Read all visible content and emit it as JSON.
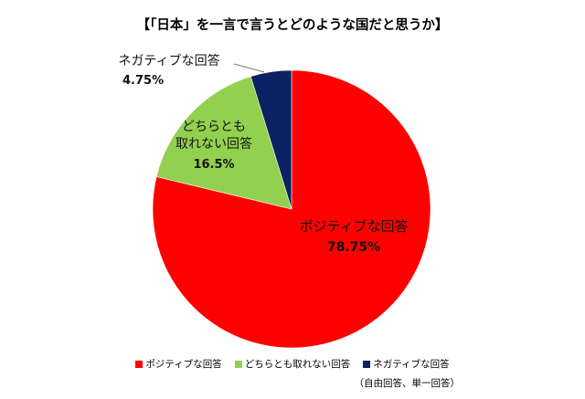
{
  "chart_data": {
    "type": "pie",
    "title": "【「日本」を一言で言うとどのような国だと思うか】",
    "start_angle": "12 o'clock, clockwise",
    "categories": [
      "ポジティブな回答",
      "どちらとも取れない回答",
      "ネガティブな回答"
    ],
    "values": [
      78.75,
      16.5,
      4.75
    ],
    "units": "%",
    "colors": [
      "#ff0000",
      "#92d050",
      "#0b2163"
    ],
    "data_labels": [
      {
        "name": "ポジティブな回答",
        "value": "78.75%"
      },
      {
        "name_line1": "どちらとも",
        "name_line2": "取れない回答",
        "value": "16.5%"
      },
      {
        "name": "ネガティブな回答",
        "value": "4.75%"
      }
    ],
    "legend": {
      "position": "bottom",
      "entries": [
        "ポジティブな回答",
        "どちらとも取れない回答",
        "ネガティブな回答"
      ]
    },
    "note": "（自由回答、単一回答）"
  },
  "title": "【「日本」を一言で言うとどのような国だと思うか】",
  "labels": {
    "positive": {
      "name": "ポジティブな回答",
      "value": "78.75%"
    },
    "neutral": {
      "line1": "どちらとも",
      "line2": "取れない回答",
      "value": "16.5%"
    },
    "negative": {
      "name": "ネガティブな回答",
      "value": "4.75%"
    }
  },
  "legend": [
    {
      "label": "ポジティブな回答",
      "color": "#ff0000"
    },
    {
      "label": "どちらとも取れない回答",
      "color": "#92d050"
    },
    {
      "label": "ネガティブな回答",
      "color": "#0b2163"
    }
  ],
  "note": "（自由回答、単一回答）"
}
